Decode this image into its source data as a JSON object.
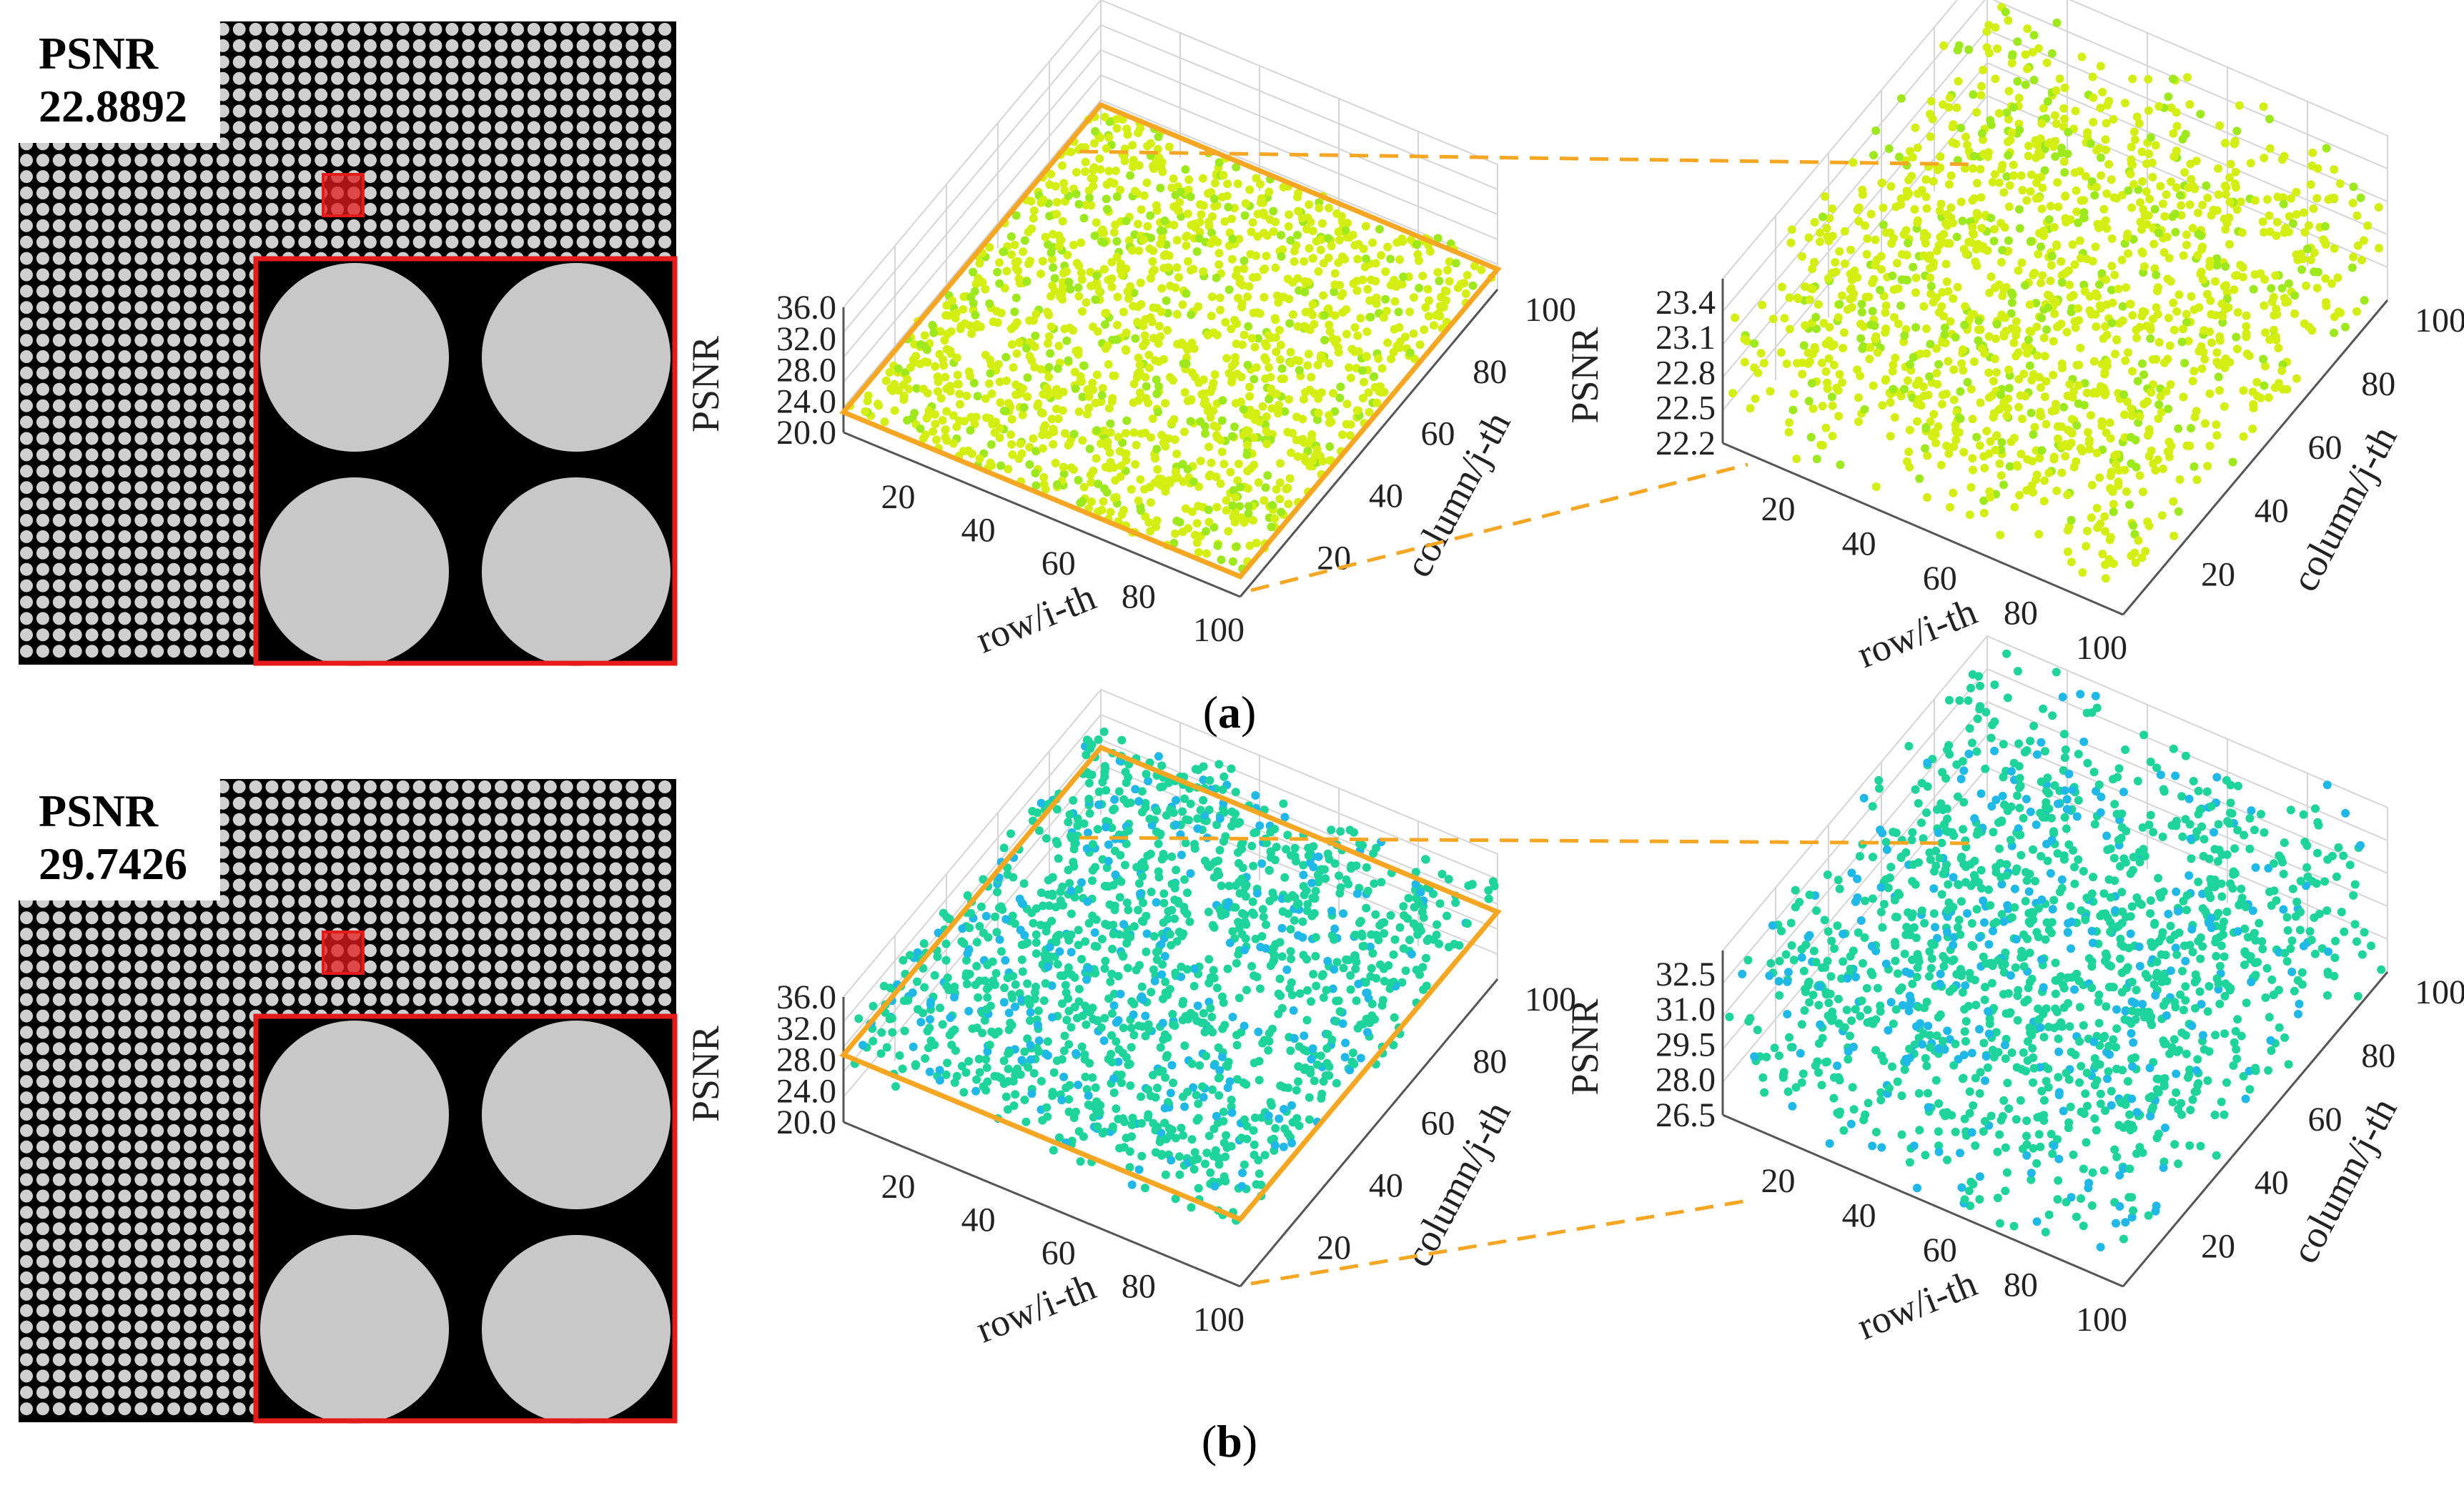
{
  "panels": [
    {
      "id": "a",
      "caption_open": "(",
      "caption_label": "a",
      "caption_close": ")",
      "image": {
        "psnr_label": "PSNR",
        "psnr_value": "22.8892"
      },
      "point_color_main": "#d4ee14",
      "point_color_alt": "#9ee81e"
    },
    {
      "id": "b",
      "caption_open": "(",
      "caption_label": "b",
      "caption_close": ")",
      "image": {
        "psnr_label": "PSNR",
        "psnr_value": "29.7426"
      },
      "point_color_main": "#1ed49a",
      "point_color_alt": "#20b8e6"
    }
  ],
  "colors": {
    "outline": "#f5a623",
    "zoom_box": "#e31b1b",
    "dot": "#cfcfcf",
    "background": "#000000"
  },
  "chart_data": [
    {
      "type": "scatter",
      "panel": "a",
      "view": "full",
      "xlabel": "row/i-th",
      "ylabel": "column/j-th",
      "zlabel": "PSNR",
      "x_ticks": [
        "20",
        "40",
        "60",
        "80",
        "100"
      ],
      "y_ticks": [
        "20",
        "40",
        "60",
        "80",
        "100"
      ],
      "z_ticks": [
        "36.0",
        "32.0",
        "28.0",
        "24.0",
        "20.0"
      ],
      "xlim": [
        1,
        100
      ],
      "ylim": [
        1,
        100
      ],
      "zlim": [
        20.0,
        36.0
      ],
      "z_range": [
        22.2,
        23.5
      ]
    },
    {
      "type": "scatter",
      "panel": "a",
      "view": "zoom",
      "xlabel": "row/i-th",
      "ylabel": "column/j-th",
      "zlabel": "PSNR",
      "x_ticks": [
        "20",
        "40",
        "60",
        "80",
        "100"
      ],
      "y_ticks": [
        "20",
        "40",
        "60",
        "80",
        "100"
      ],
      "z_ticks": [
        "23.4",
        "23.1",
        "22.8",
        "22.5",
        "22.2"
      ],
      "xlim": [
        1,
        100
      ],
      "ylim": [
        1,
        100
      ],
      "zlim": [
        22.2,
        23.6
      ],
      "z_range": [
        22.2,
        23.5
      ]
    },
    {
      "type": "scatter",
      "panel": "b",
      "view": "full",
      "xlabel": "row/i-th",
      "ylabel": "column/j-th",
      "zlabel": "PSNR",
      "x_ticks": [
        "20",
        "40",
        "60",
        "80",
        "100"
      ],
      "y_ticks": [
        "20",
        "40",
        "60",
        "80",
        "100"
      ],
      "z_ticks": [
        "36.0",
        "32.0",
        "28.0",
        "24.0",
        "20.0"
      ],
      "xlim": [
        1,
        100
      ],
      "ylim": [
        1,
        100
      ],
      "zlim": [
        20.0,
        36.0
      ],
      "z_range": [
        26.5,
        33.5
      ]
    },
    {
      "type": "scatter",
      "panel": "b",
      "view": "zoom",
      "xlabel": "row/i-th",
      "ylabel": "column/j-th",
      "zlabel": "PSNR",
      "x_ticks": [
        "20",
        "40",
        "60",
        "80",
        "100"
      ],
      "y_ticks": [
        "20",
        "40",
        "60",
        "80",
        "100"
      ],
      "z_ticks": [
        "32.5",
        "31.0",
        "29.5",
        "28.0",
        "26.5"
      ],
      "xlim": [
        1,
        100
      ],
      "ylim": [
        1,
        100
      ],
      "zlim": [
        26.5,
        33.5
      ],
      "z_range": [
        26.5,
        33.5
      ]
    }
  ]
}
